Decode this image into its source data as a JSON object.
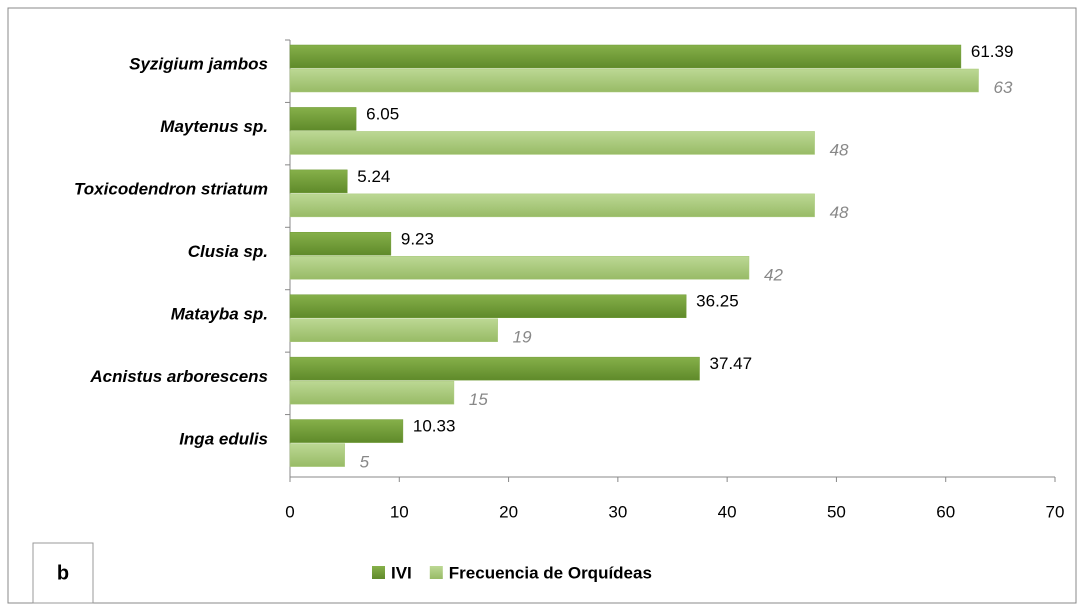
{
  "chart_data": {
    "type": "hbar",
    "categories": [
      "Syzigium jambos",
      "Maytenus sp.",
      "Toxicodendron striatum",
      "Clusia sp.",
      "Matayba sp.",
      "Acnistus arborescens",
      "Inga edulis"
    ],
    "series": [
      {
        "name": "IVI",
        "color": "#6f9a34",
        "values": [
          61.39,
          6.05,
          5.24,
          9.23,
          36.25,
          37.47,
          10.33
        ]
      },
      {
        "name": "Frecuencia de Orquídeas",
        "color": "#a9c97a",
        "values": [
          63,
          48,
          48,
          42,
          19,
          15,
          5
        ]
      }
    ],
    "xlim": [
      0,
      70
    ],
    "xticks": [
      0,
      10,
      20,
      30,
      40,
      50,
      60,
      70
    ],
    "grid": false,
    "legend": "bottom",
    "panel_label": "b"
  }
}
